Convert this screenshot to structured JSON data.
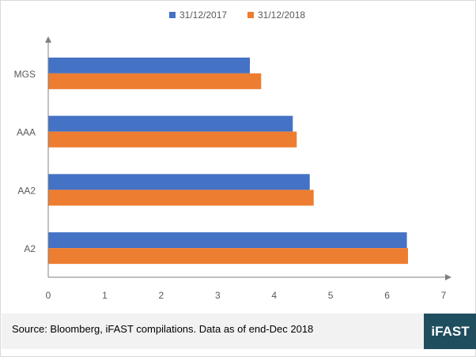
{
  "chart_data": {
    "type": "bar",
    "orientation": "horizontal",
    "categories": [
      "MGS",
      "AAA",
      "AA2",
      "A2"
    ],
    "series": [
      {
        "name": "31/12/2017",
        "color": "#4472c4",
        "values": [
          3.57,
          4.33,
          4.63,
          6.35
        ]
      },
      {
        "name": "31/12/2018",
        "color": "#ed7d31",
        "values": [
          3.77,
          4.4,
          4.7,
          6.37
        ]
      }
    ],
    "xlim": [
      0,
      7
    ],
    "xticks": [
      "0",
      "1",
      "2",
      "3",
      "4",
      "5",
      "6",
      "7"
    ],
    "title": "",
    "xlabel": "",
    "ylabel": "",
    "legend_position": "top-center",
    "grid": false
  },
  "footer": {
    "source": "Source: Bloomberg, iFAST compilations. Data as of end-Dec 2018",
    "logo_text": "iFAST",
    "logo_color": "#1f4e5f"
  }
}
